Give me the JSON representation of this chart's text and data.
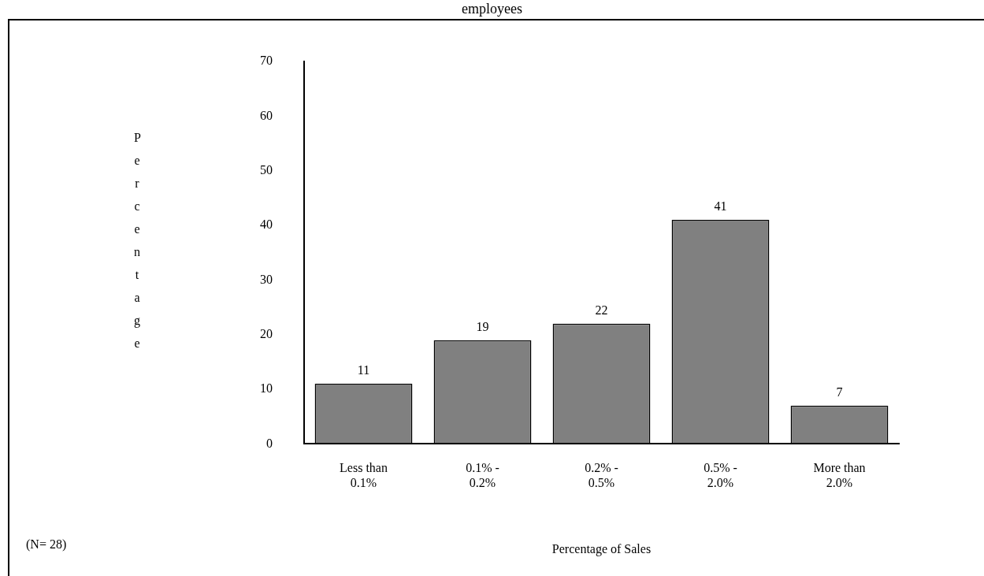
{
  "chart_data": {
    "type": "bar",
    "title": "employees",
    "xlabel": "Percentage of Sales",
    "ylabel": "Percentage",
    "categories": [
      "Less than 0.1%",
      "0.1% - 0.2%",
      "0.2% - 0.5%",
      "0.5% - 2.0%",
      "More than 2.0%"
    ],
    "values": [
      11,
      19,
      22,
      41,
      7
    ],
    "color": "#808080",
    "ylim": [
      0,
      70
    ],
    "yticks": [
      0,
      10,
      20,
      30,
      40,
      50,
      60,
      70
    ],
    "grid": false,
    "legend": false,
    "data_labels": true,
    "annotations": [
      "(N= 28)"
    ]
  }
}
